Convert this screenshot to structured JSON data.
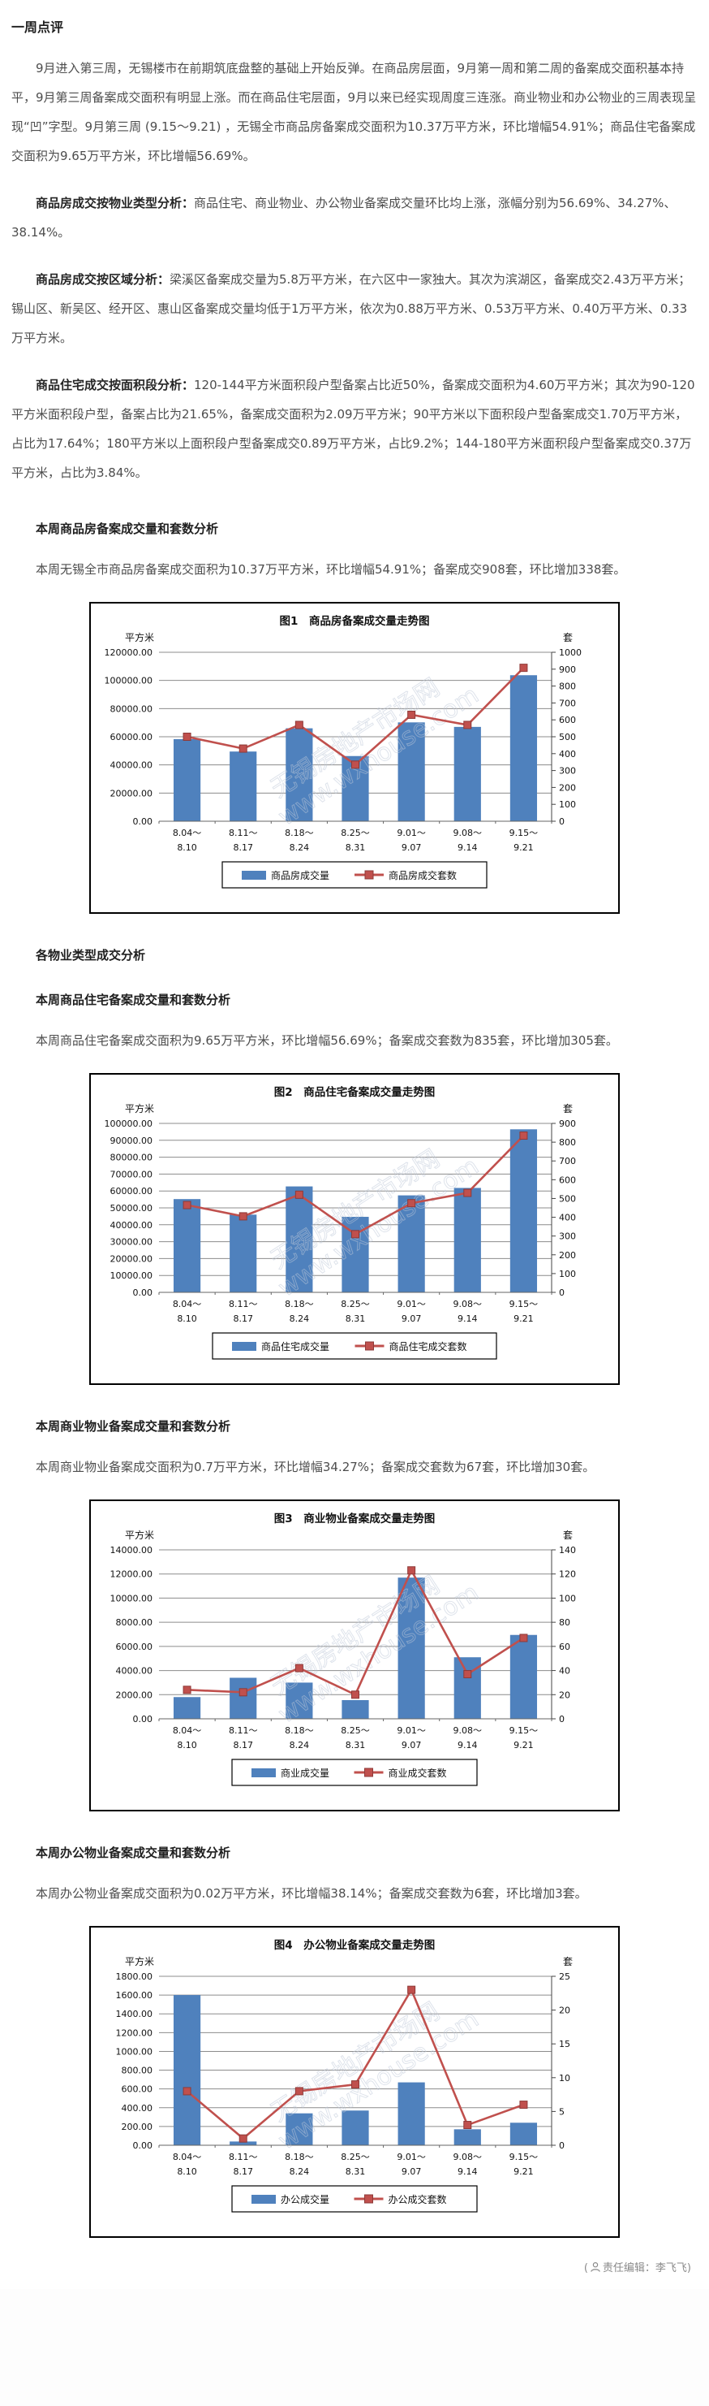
{
  "review": {
    "heading": "一周点评",
    "p1": "9月进入第三周，无锡楼市在前期筑底盘整的基础上开始反弹。在商品房层面，9月第一周和第二周的备案成交面积基本持平，9月第三周备案成交面积有明显上涨。而在商品住宅层面，9月以来已经实现周度三连涨。商业物业和办公物业的三周表现呈现“凹”字型。9月第三周 (9.15～9.21) ，无锡全市商品房备案成交面积为10.37万平方米，环比增幅54.91%；商品住宅备案成交面积为9.65万平方米，环比增幅56.69%。",
    "p2_lead": "商品房成交按物业类型分析：",
    "p2_text": "商品住宅、商业物业、办公物业备案成交量环比均上涨，涨幅分别为56.69%、34.27%、38.14%。",
    "p3_lead": "商品房成交按区域分析：",
    "p3_text": "梁溪区备案成交量为5.8万平方米，在六区中一家独大。其次为滨湖区，备案成交2.43万平方米；锡山区、新吴区、经开区、惠山区备案成交量均低于1万平方米，依次为0.88万平方米、0.53万平方米、0.40万平方米、0.33万平方米。",
    "p4_lead": "商品住宅成交按面积段分析：",
    "p4_text": "120-144平方米面积段户型备案占比近50%，备案成交面积为4.60万平方米；其次为90-120平方米面积段户型，备案占比为21.65%，备案成交面积为2.09万平方米；90平方米以下面积段户型备案成交1.70万平方米，占比为17.64%；180平方米以上面积段户型备案成交0.89万平方米，占比9.2%；144-180平方米面积段户型备案成交0.37万平方米，占比为3.84%。"
  },
  "sections": [
    {
      "heading": "本周商品房备案成交量和套数分析",
      "paragraph": "本周无锡全市商品房备案成交面积为10.37万平方米，环比增幅54.91%；备案成交908套，环比增加338套。"
    },
    {
      "heading": "各物业类型成交分析",
      "paragraph": ""
    },
    {
      "heading": "本周商品住宅备案成交量和套数分析",
      "paragraph": "本周商品住宅备案成交面积为9.65万平方米，环比增幅56.69%；备案成交套数为835套，环比增加305套。"
    },
    {
      "heading": "本周商业物业备案成交量和套数分析",
      "paragraph": "本周商业物业备案成交面积为0.7万平方米，环比增幅34.27%；备案成交套数为67套，环比增加30套。"
    },
    {
      "heading": "本周办公物业备案成交量和套数分析",
      "paragraph": "本周办公物业备案成交面积为0.02万平方米，环比增幅38.14%；备案成交套数为6套，环比增加3套。"
    }
  ],
  "footer": {
    "open": "(",
    "label": "责任编辑：李飞飞",
    "close": ")"
  },
  "watermark": {
    "line1": "无锡房地产市场网",
    "line2": "www.wxhouse.com"
  },
  "colors": {
    "bar": "#4F81BD",
    "line": "#C0504D",
    "grid": "#8C8C8C",
    "marker_edge": "#8E3A38"
  },
  "chart_data": [
    {
      "type": "bar",
      "title": "图1　商品房备案成交量走势图",
      "categories": [
        [
          "8.04～",
          "8.10"
        ],
        [
          "8.11～",
          "8.17"
        ],
        [
          "8.18～",
          "8.24"
        ],
        [
          "8.25～",
          "8.31"
        ],
        [
          "9.01～",
          "9.07"
        ],
        [
          "9.08～",
          "9.14"
        ],
        [
          "9.15～",
          "9.21"
        ]
      ],
      "left_axis": {
        "unit": "平方米",
        "max": 120000,
        "step": 20000
      },
      "right_axis": {
        "unit": "套",
        "max": 1000,
        "step": 100
      },
      "series": [
        {
          "name": "商品房成交量",
          "type": "bar",
          "axis": "left",
          "values": [
            58300,
            49500,
            66000,
            46300,
            70200,
            67000,
            103700
          ]
        },
        {
          "name": "商品房成交套数",
          "type": "line",
          "axis": "right",
          "values": [
            500,
            430,
            570,
            335,
            630,
            570,
            908
          ]
        }
      ]
    },
    {
      "type": "bar",
      "title": "图2　商品住宅备案成交量走势图",
      "categories": [
        [
          "8.04～",
          "8.10"
        ],
        [
          "8.11～",
          "8.17"
        ],
        [
          "8.18～",
          "8.24"
        ],
        [
          "8.25～",
          "8.31"
        ],
        [
          "9.01～",
          "9.07"
        ],
        [
          "9.08～",
          "9.14"
        ],
        [
          "9.15～",
          "9.21"
        ]
      ],
      "left_axis": {
        "unit": "平方米",
        "max": 100000,
        "step": 10000
      },
      "right_axis": {
        "unit": "套",
        "max": 900,
        "step": 100
      },
      "series": [
        {
          "name": "商品住宅成交量",
          "type": "bar",
          "axis": "left",
          "values": [
            55200,
            46000,
            62700,
            44700,
            57400,
            61800,
            96500
          ]
        },
        {
          "name": "商品住宅成交套数",
          "type": "line",
          "axis": "right",
          "values": [
            465,
            405,
            520,
            310,
            475,
            530,
            835
          ]
        }
      ]
    },
    {
      "type": "bar",
      "title": "图3　商业物业备案成交量走势图",
      "categories": [
        [
          "8.04～",
          "8.10"
        ],
        [
          "8.11～",
          "8.17"
        ],
        [
          "8.18～",
          "8.24"
        ],
        [
          "8.25～",
          "8.31"
        ],
        [
          "9.01～",
          "9.07"
        ],
        [
          "9.08～",
          "9.14"
        ],
        [
          "9.15～",
          "9.21"
        ]
      ],
      "left_axis": {
        "unit": "平方米",
        "max": 14000,
        "step": 2000
      },
      "right_axis": {
        "unit": "套",
        "max": 140,
        "step": 20
      },
      "series": [
        {
          "name": "商业成交量",
          "type": "bar",
          "axis": "left",
          "values": [
            1800,
            3400,
            3000,
            1550,
            11700,
            5100,
            6950
          ]
        },
        {
          "name": "商业成交套数",
          "type": "line",
          "axis": "right",
          "values": [
            24,
            22,
            42,
            20,
            123,
            37,
            67
          ]
        }
      ]
    },
    {
      "type": "bar",
      "title": "图4　办公物业备案成交量走势图",
      "categories": [
        [
          "8.04～",
          "8.10"
        ],
        [
          "8.11～",
          "8.17"
        ],
        [
          "8.18～",
          "8.24"
        ],
        [
          "8.25～",
          "8.31"
        ],
        [
          "9.01～",
          "9.07"
        ],
        [
          "9.08～",
          "9.14"
        ],
        [
          "9.15～",
          "9.21"
        ]
      ],
      "left_axis": {
        "unit": "平方米",
        "max": 1800,
        "step": 200
      },
      "right_axis": {
        "unit": "套",
        "max": 25,
        "step": 5
      },
      "series": [
        {
          "name": "办公成交量",
          "type": "bar",
          "axis": "left",
          "values": [
            1600,
            40,
            340,
            370,
            670,
            170,
            240
          ]
        },
        {
          "name": "办公成交套数",
          "type": "line",
          "axis": "right",
          "values": [
            8,
            1,
            8,
            9,
            23,
            3,
            6
          ]
        }
      ]
    }
  ]
}
